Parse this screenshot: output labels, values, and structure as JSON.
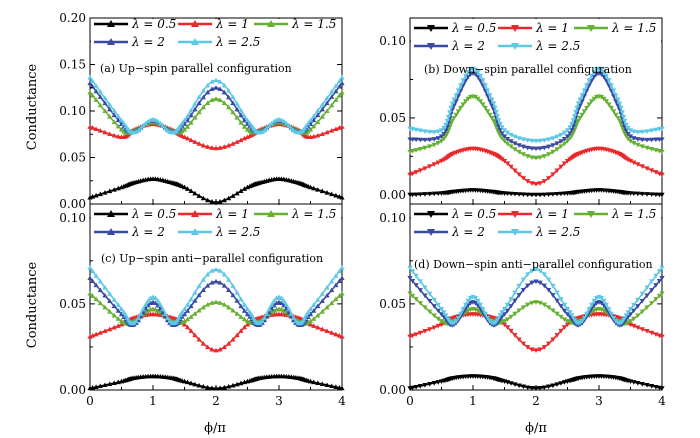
{
  "figure": {
    "xlabel": "ϕ/π",
    "ylabel": "Conductance",
    "legend_labels": [
      "λ = 0.5",
      "λ = 1",
      "λ = 1.5",
      "λ = 2",
      "λ = 2.5"
    ],
    "series_colors": [
      "#000000",
      "#e8282b",
      "#66b032",
      "#3a4aa2",
      "#5cc8e6"
    ]
  },
  "chart_data": [
    {
      "type": "line",
      "title": "(a) Up−spin parallel configuration",
      "xlabel": "",
      "ylabel": "Conductance",
      "xlim": [
        0,
        4
      ],
      "ylim": [
        0,
        0.2
      ],
      "xticks": [],
      "yticks": [
        "0.00",
        "0.05",
        "0.10",
        "0.15",
        "0.20"
      ],
      "marker": "triangle-up",
      "x": [
        0,
        0.5,
        0.7,
        1.0,
        1.3,
        1.5,
        2.0,
        2.5,
        2.7,
        3.0,
        3.3,
        3.5,
        4.0
      ],
      "series": [
        {
          "name": "λ = 0.5",
          "color": "#000000",
          "values": [
            0.007,
            0.018,
            0.023,
            0.027,
            0.023,
            0.018,
            0.002,
            0.018,
            0.023,
            0.027,
            0.023,
            0.018,
            0.007
          ]
        },
        {
          "name": "λ = 1",
          "color": "#e8282b",
          "values": [
            0.083,
            0.072,
            0.08,
            0.086,
            0.08,
            0.072,
            0.06,
            0.072,
            0.08,
            0.086,
            0.08,
            0.072,
            0.083
          ]
        },
        {
          "name": "λ = 1.5",
          "color": "#66b032",
          "values": [
            0.12,
            0.08,
            0.079,
            0.088,
            0.079,
            0.08,
            0.113,
            0.08,
            0.079,
            0.088,
            0.079,
            0.08,
            0.12
          ]
        },
        {
          "name": "λ = 2",
          "color": "#3a4aa2",
          "values": [
            0.13,
            0.086,
            0.078,
            0.09,
            0.078,
            0.086,
            0.125,
            0.086,
            0.078,
            0.09,
            0.078,
            0.086,
            0.13
          ]
        },
        {
          "name": "λ = 2.5",
          "color": "#5cc8e6",
          "values": [
            0.136,
            0.09,
            0.077,
            0.091,
            0.077,
            0.09,
            0.133,
            0.09,
            0.077,
            0.091,
            0.077,
            0.09,
            0.136
          ]
        }
      ]
    },
    {
      "type": "line",
      "title": "(b) Down−spin parallel configuration",
      "xlabel": "",
      "ylabel": "",
      "xlim": [
        0,
        4
      ],
      "ylim": [
        -0.006,
        0.115
      ],
      "xticks": [],
      "yticks": [
        "0.00",
        "0.05",
        "0.10"
      ],
      "marker": "triangle-down",
      "x": [
        0,
        0.5,
        0.7,
        1.0,
        1.3,
        1.5,
        2.0,
        2.5,
        2.7,
        3.0,
        3.3,
        3.5,
        4.0
      ],
      "series": [
        {
          "name": "λ = 0.5",
          "color": "#000000",
          "values": [
            0.0,
            0.001,
            0.002,
            0.003,
            0.002,
            0.001,
            0.0,
            0.001,
            0.002,
            0.003,
            0.002,
            0.001,
            0.0
          ]
        },
        {
          "name": "λ = 1",
          "color": "#e8282b",
          "values": [
            0.013,
            0.022,
            0.027,
            0.03,
            0.027,
            0.022,
            0.007,
            0.022,
            0.027,
            0.03,
            0.027,
            0.022,
            0.013
          ]
        },
        {
          "name": "λ = 1.5",
          "color": "#66b032",
          "values": [
            0.028,
            0.035,
            0.05,
            0.064,
            0.05,
            0.035,
            0.024,
            0.035,
            0.05,
            0.064,
            0.05,
            0.035,
            0.028
          ]
        },
        {
          "name": "λ = 2",
          "color": "#3a4aa2",
          "values": [
            0.036,
            0.038,
            0.058,
            0.079,
            0.058,
            0.038,
            0.03,
            0.038,
            0.058,
            0.079,
            0.058,
            0.038,
            0.036
          ]
        },
        {
          "name": "λ = 2.5",
          "color": "#5cc8e6",
          "values": [
            0.043,
            0.042,
            0.062,
            0.082,
            0.062,
            0.042,
            0.035,
            0.042,
            0.062,
            0.082,
            0.062,
            0.042,
            0.043
          ]
        }
      ]
    },
    {
      "type": "line",
      "title": "(c) Up−spin anti−parallel configuration",
      "xlabel": "ϕ/π",
      "ylabel": "Conductance",
      "xlim": [
        0,
        4
      ],
      "ylim": [
        0,
        0.108
      ],
      "xticks": [
        "0",
        "1",
        "2",
        "3",
        "4"
      ],
      "yticks": [
        "0.00",
        "0.05",
        "0.10"
      ],
      "marker": "triangle-up",
      "x": [
        0,
        0.5,
        0.7,
        1.0,
        1.3,
        1.5,
        2.0,
        2.5,
        2.7,
        3.0,
        3.3,
        3.5,
        4.0
      ],
      "series": [
        {
          "name": "λ = 0.5",
          "color": "#000000",
          "values": [
            0.001,
            0.005,
            0.007,
            0.008,
            0.007,
            0.005,
            0.001,
            0.005,
            0.007,
            0.008,
            0.007,
            0.005,
            0.001
          ]
        },
        {
          "name": "λ = 1",
          "color": "#e8282b",
          "values": [
            0.031,
            0.038,
            0.042,
            0.044,
            0.042,
            0.038,
            0.023,
            0.038,
            0.042,
            0.044,
            0.042,
            0.038,
            0.031
          ]
        },
        {
          "name": "λ = 1.5",
          "color": "#66b032",
          "values": [
            0.056,
            0.04,
            0.04,
            0.047,
            0.04,
            0.04,
            0.051,
            0.04,
            0.04,
            0.047,
            0.04,
            0.04,
            0.056
          ]
        },
        {
          "name": "λ = 2",
          "color": "#3a4aa2",
          "values": [
            0.065,
            0.044,
            0.038,
            0.051,
            0.038,
            0.044,
            0.063,
            0.044,
            0.038,
            0.051,
            0.038,
            0.044,
            0.065
          ]
        },
        {
          "name": "λ = 2.5",
          "color": "#5cc8e6",
          "values": [
            0.071,
            0.047,
            0.039,
            0.054,
            0.039,
            0.047,
            0.07,
            0.047,
            0.039,
            0.054,
            0.039,
            0.047,
            0.071
          ]
        }
      ]
    },
    {
      "type": "line",
      "title": "(d) Down−spin anti−parallel configuration",
      "xlabel": "ϕ/π",
      "ylabel": "",
      "xlim": [
        0,
        4
      ],
      "ylim": [
        0,
        0.108
      ],
      "xticks": [
        "0",
        "1",
        "2",
        "3",
        "4"
      ],
      "yticks": [
        "0.00",
        "0.05",
        "0.10"
      ],
      "marker": "triangle-down",
      "x": [
        0,
        0.5,
        0.7,
        1.0,
        1.3,
        1.5,
        2.0,
        2.5,
        2.7,
        3.0,
        3.3,
        3.5,
        4.0
      ],
      "series": [
        {
          "name": "λ = 0.5",
          "color": "#000000",
          "values": [
            0.001,
            0.005,
            0.007,
            0.008,
            0.007,
            0.005,
            0.001,
            0.005,
            0.007,
            0.008,
            0.007,
            0.005,
            0.001
          ]
        },
        {
          "name": "λ = 1",
          "color": "#e8282b",
          "values": [
            0.031,
            0.038,
            0.042,
            0.044,
            0.042,
            0.038,
            0.023,
            0.038,
            0.042,
            0.044,
            0.042,
            0.038,
            0.031
          ]
        },
        {
          "name": "λ = 1.5",
          "color": "#66b032",
          "values": [
            0.056,
            0.04,
            0.04,
            0.047,
            0.04,
            0.04,
            0.051,
            0.04,
            0.04,
            0.047,
            0.04,
            0.04,
            0.056
          ]
        },
        {
          "name": "λ = 2",
          "color": "#3a4aa2",
          "values": [
            0.065,
            0.044,
            0.038,
            0.051,
            0.038,
            0.044,
            0.063,
            0.044,
            0.038,
            0.051,
            0.038,
            0.044,
            0.065
          ]
        },
        {
          "name": "λ = 2.5",
          "color": "#5cc8e6",
          "values": [
            0.071,
            0.047,
            0.039,
            0.054,
            0.039,
            0.047,
            0.07,
            0.047,
            0.039,
            0.054,
            0.039,
            0.047,
            0.071
          ]
        }
      ]
    }
  ]
}
